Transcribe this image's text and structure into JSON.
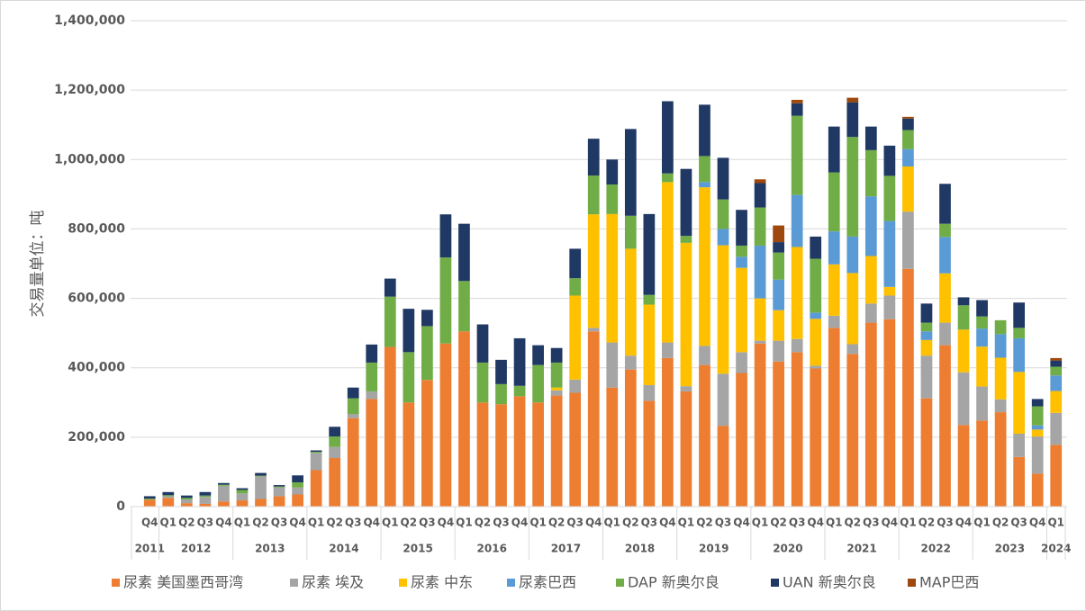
{
  "chart_data": {
    "type": "stacked_bar",
    "y_label": "交易量单位：吨",
    "categories": [
      "Q4",
      "Q1",
      "Q2",
      "Q3",
      "Q4",
      "Q1",
      "Q2",
      "Q3",
      "Q4",
      "Q1",
      "Q2",
      "Q3",
      "Q4",
      "Q1",
      "Q2",
      "Q3",
      "Q4",
      "Q1",
      "Q2",
      "Q3",
      "Q4",
      "Q1",
      "Q2",
      "Q3",
      "Q4",
      "Q1",
      "Q2",
      "Q3",
      "Q4",
      "Q1",
      "Q2",
      "Q3",
      "Q4",
      "Q1",
      "Q2",
      "Q3",
      "Q4",
      "Q1",
      "Q2",
      "Q3",
      "Q4",
      "Q1",
      "Q2",
      "Q3",
      "Q4",
      "Q1",
      "Q2",
      "Q3",
      "Q4",
      "Q1"
    ],
    "year_groups": [
      {
        "label": "2011",
        "count": 1
      },
      {
        "label": "2012",
        "count": 4
      },
      {
        "label": "2013",
        "count": 4
      },
      {
        "label": "2014",
        "count": 4
      },
      {
        "label": "2015",
        "count": 4
      },
      {
        "label": "2016",
        "count": 4
      },
      {
        "label": "2017",
        "count": 4
      },
      {
        "label": "2018",
        "count": 4
      },
      {
        "label": "2019",
        "count": 4
      },
      {
        "label": "2020",
        "count": 4
      },
      {
        "label": "2021",
        "count": 4
      },
      {
        "label": "2022",
        "count": 4
      },
      {
        "label": "2023",
        "count": 4
      },
      {
        "label": "2024",
        "count": 1
      }
    ],
    "series": [
      {
        "name": "尿素 美国墨西哥湾",
        "color": "#ed7d31",
        "values": [
          20000,
          25000,
          10000,
          8000,
          15000,
          18000,
          22000,
          30000,
          35000,
          105000,
          140000,
          255000,
          310000,
          460000,
          300000,
          365000,
          470000,
          505000,
          300000,
          295000,
          318000,
          300000,
          320000,
          328000,
          505000,
          343000,
          395000,
          305000,
          428000,
          332000,
          408000,
          233000,
          385000,
          470000,
          418000,
          445000,
          398000,
          515000,
          440000,
          530000,
          540000,
          685000,
          312000,
          465000,
          235000,
          248000,
          272000,
          143000,
          95000,
          178000
        ]
      },
      {
        "name": "尿素 埃及",
        "color": "#a5a5a5",
        "values": [
          0,
          5000,
          10000,
          20000,
          45000,
          20000,
          65000,
          25000,
          20000,
          50000,
          32000,
          12000,
          22000,
          0,
          0,
          0,
          0,
          0,
          0,
          0,
          0,
          0,
          15000,
          38000,
          10000,
          130000,
          40000,
          45000,
          45000,
          15000,
          55000,
          150000,
          60000,
          8000,
          60000,
          38000,
          8000,
          35000,
          28000,
          55000,
          68000,
          165000,
          123000,
          65000,
          152000,
          98000,
          37000,
          67000,
          107000,
          92000
        ]
      },
      {
        "name": "尿素 中东",
        "color": "#ffc000",
        "values": [
          0,
          0,
          0,
          0,
          0,
          0,
          0,
          0,
          0,
          0,
          0,
          0,
          0,
          0,
          0,
          0,
          0,
          0,
          0,
          0,
          0,
          0,
          8000,
          242000,
          327000,
          370000,
          308000,
          232000,
          462000,
          413000,
          457000,
          370000,
          243000,
          122000,
          88000,
          265000,
          135000,
          148000,
          205000,
          137000,
          25000,
          130000,
          45000,
          142000,
          123000,
          115000,
          120000,
          178000,
          20000,
          63000
        ]
      },
      {
        "name": "尿素巴西",
        "color": "#5b9bd5",
        "values": [
          0,
          0,
          0,
          0,
          0,
          0,
          0,
          0,
          0,
          0,
          0,
          0,
          0,
          0,
          0,
          0,
          0,
          0,
          0,
          0,
          0,
          0,
          0,
          0,
          0,
          0,
          0,
          0,
          0,
          0,
          15000,
          47000,
          32000,
          152000,
          88000,
          150000,
          18000,
          95000,
          105000,
          172000,
          190000,
          50000,
          25000,
          105000,
          0,
          52000,
          68000,
          97000,
          12000,
          45000
        ]
      },
      {
        "name": "DAP 新奥尔良",
        "color": "#70ad47",
        "values": [
          3000,
          3000,
          5000,
          4000,
          3000,
          10000,
          2000,
          3000,
          15000,
          3000,
          30000,
          45000,
          83000,
          145000,
          145000,
          155000,
          248000,
          145000,
          115000,
          58000,
          30000,
          108000,
          72000,
          50000,
          112000,
          85000,
          95000,
          28000,
          25000,
          20000,
          75000,
          85000,
          32000,
          110000,
          78000,
          228000,
          155000,
          170000,
          287000,
          133000,
          130000,
          55000,
          25000,
          38000,
          70000,
          35000,
          40000,
          30000,
          55000,
          25000
        ]
      },
      {
        "name": "UAN 新奥尔良",
        "color": "#203864",
        "values": [
          7000,
          9000,
          7000,
          10000,
          5000,
          5000,
          8000,
          4000,
          20000,
          4000,
          28000,
          31000,
          52000,
          52000,
          125000,
          47000,
          124000,
          165000,
          110000,
          70000,
          137000,
          57000,
          42000,
          85000,
          106000,
          72000,
          250000,
          233000,
          208000,
          193000,
          148000,
          120000,
          103000,
          70000,
          30000,
          36000,
          64000,
          132000,
          100000,
          68000,
          87000,
          33000,
          55000,
          115000,
          23000,
          47000,
          0,
          73000,
          21000,
          18000
        ]
      },
      {
        "name": "MAP巴西",
        "color": "#9e480e",
        "values": [
          0,
          0,
          0,
          0,
          0,
          0,
          0,
          0,
          0,
          0,
          0,
          0,
          0,
          0,
          0,
          0,
          0,
          0,
          0,
          0,
          0,
          0,
          0,
          0,
          0,
          0,
          0,
          0,
          0,
          0,
          0,
          0,
          0,
          11000,
          48000,
          10000,
          0,
          0,
          13000,
          0,
          0,
          5000,
          0,
          0,
          0,
          0,
          0,
          0,
          0,
          7000
        ]
      }
    ],
    "ylim": [
      0,
      1400000
    ],
    "yticks": [
      0,
      {
        "value": 200000,
        "label": "200,000"
      },
      {
        "value": 400000,
        "label": "400,000"
      },
      {
        "value": 600000,
        "label": "600,000"
      },
      {
        "value": 800000,
        "label": "800,000"
      },
      {
        "value": 1000000,
        "label": "1,000,000"
      },
      {
        "value": 1200000,
        "label": "1,200,000"
      },
      {
        "value": 1400000,
        "label": "1,400,000"
      }
    ],
    "grid": true,
    "legend": "bottom"
  }
}
